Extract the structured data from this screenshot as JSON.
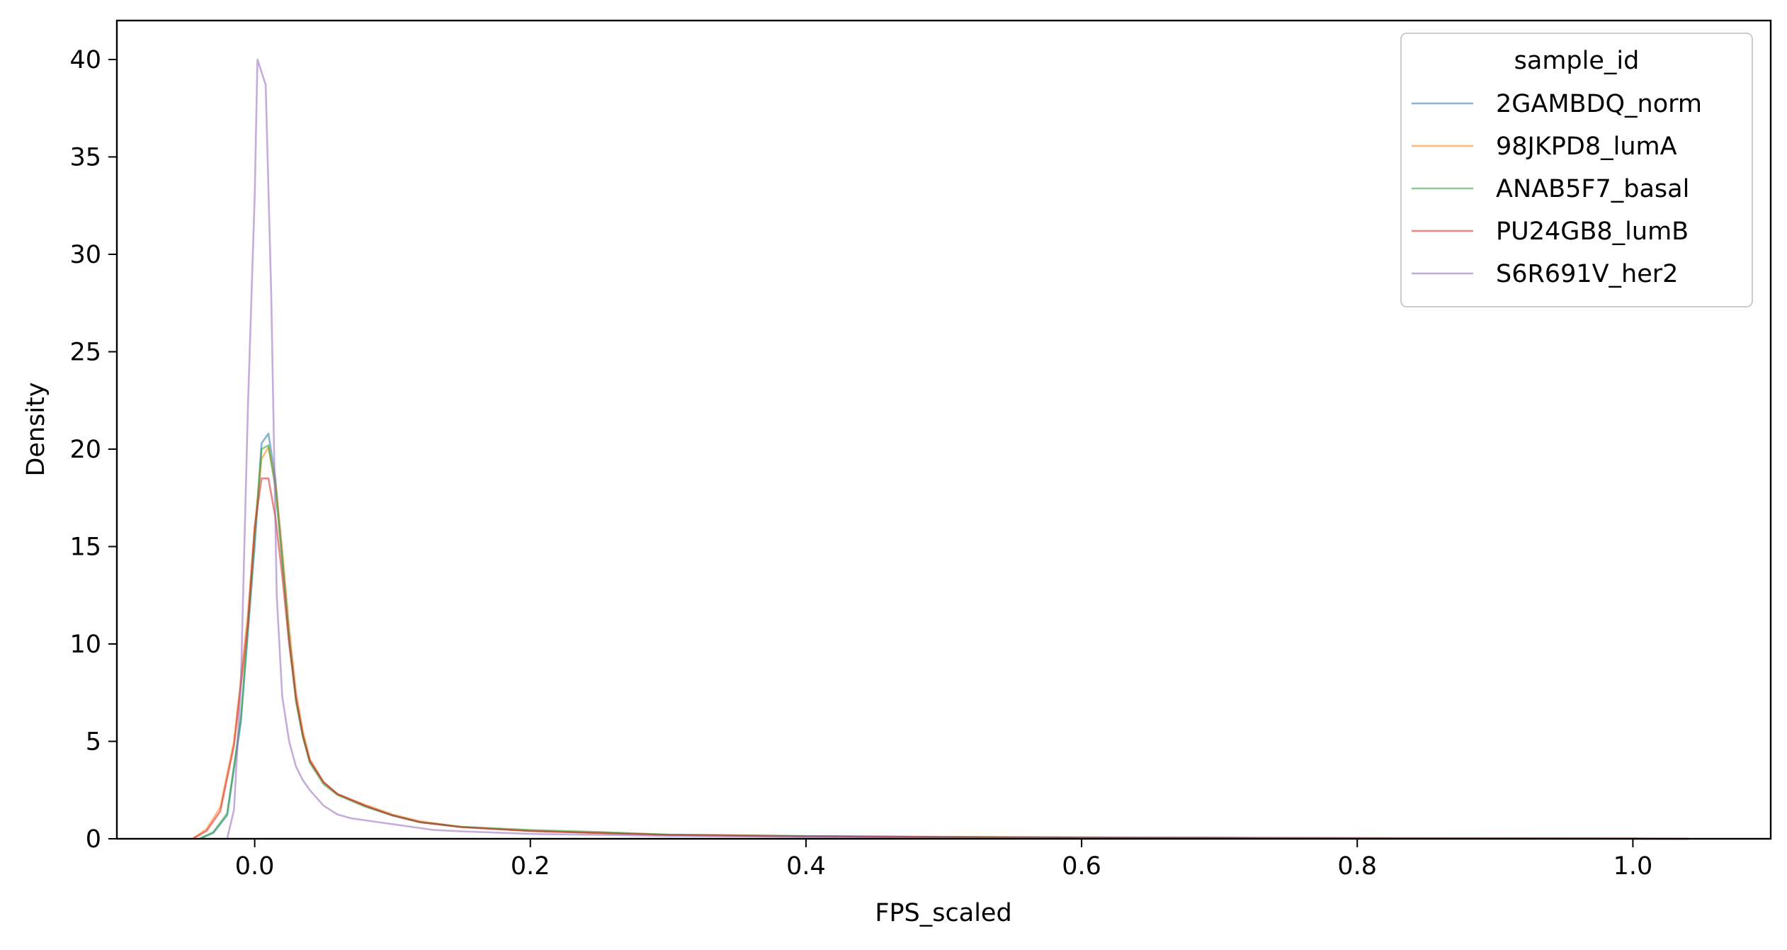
{
  "chart_data": {
    "type": "line",
    "title": "",
    "xlabel": "FPS_scaled",
    "ylabel": "Density",
    "xlim": [
      -0.1,
      1.1
    ],
    "ylim": [
      0,
      42
    ],
    "xticks": [
      0.0,
      0.2,
      0.4,
      0.6,
      0.8,
      1.0
    ],
    "xtick_labels": [
      "0.0",
      "0.2",
      "0.4",
      "0.6",
      "0.8",
      "1.0"
    ],
    "yticks": [
      0,
      5,
      10,
      15,
      20,
      25,
      30,
      35,
      40
    ],
    "ytick_labels": [
      "0",
      "5",
      "10",
      "15",
      "20",
      "25",
      "30",
      "35",
      "40"
    ],
    "grid": false,
    "legend": {
      "title": "sample_id",
      "placement": "top-right"
    },
    "series": [
      {
        "name": "2GAMBDQ_norm",
        "color": "#1f77b4",
        "x": [
          -0.04,
          -0.03,
          -0.02,
          -0.01,
          0.0,
          0.005,
          0.01,
          0.015,
          0.02,
          0.025,
          0.03,
          0.035,
          0.04,
          0.05,
          0.06,
          0.08,
          0.1,
          0.12,
          0.15,
          0.2,
          0.25,
          0.3,
          0.4,
          0.5,
          0.6,
          0.7,
          0.8,
          0.9,
          1.0,
          1.04
        ],
        "y": [
          0.0,
          0.3,
          1.2,
          6.0,
          15.0,
          20.3,
          20.8,
          18.5,
          14.5,
          10.5,
          7.2,
          5.3,
          4.0,
          2.9,
          2.3,
          1.7,
          1.2,
          0.85,
          0.6,
          0.4,
          0.3,
          0.2,
          0.13,
          0.09,
          0.06,
          0.04,
          0.03,
          0.02,
          0.01,
          0.0
        ]
      },
      {
        "name": "98JKPD8_lumA",
        "color": "#ff7f0e",
        "x": [
          -0.045,
          -0.035,
          -0.025,
          -0.015,
          -0.005,
          0.0,
          0.005,
          0.01,
          0.015,
          0.02,
          0.025,
          0.03,
          0.035,
          0.04,
          0.05,
          0.06,
          0.08,
          0.1,
          0.12,
          0.15,
          0.2,
          0.25,
          0.3,
          0.4,
          0.5,
          0.6,
          0.7,
          0.8,
          0.9,
          1.0,
          1.04
        ],
        "y": [
          0.0,
          0.5,
          1.6,
          5.0,
          11.5,
          16.0,
          19.5,
          20.1,
          18.3,
          14.8,
          10.8,
          7.5,
          5.5,
          4.1,
          2.9,
          2.3,
          1.75,
          1.25,
          0.9,
          0.6,
          0.4,
          0.3,
          0.2,
          0.13,
          0.09,
          0.07,
          0.05,
          0.03,
          0.02,
          0.01,
          0.0
        ]
      },
      {
        "name": "ANAB5F7_basal",
        "color": "#2ca02c",
        "x": [
          -0.04,
          -0.03,
          -0.02,
          -0.01,
          0.0,
          0.005,
          0.01,
          0.015,
          0.02,
          0.025,
          0.03,
          0.035,
          0.04,
          0.05,
          0.06,
          0.08,
          0.1,
          0.12,
          0.15,
          0.2,
          0.25,
          0.3,
          0.4,
          0.5,
          0.6,
          0.7,
          0.8,
          0.9,
          1.0,
          1.04
        ],
        "y": [
          0.0,
          0.35,
          1.3,
          6.2,
          15.5,
          20.0,
          20.2,
          18.0,
          14.2,
          10.2,
          7.0,
          5.2,
          3.9,
          2.8,
          2.25,
          1.65,
          1.2,
          0.85,
          0.62,
          0.45,
          0.35,
          0.22,
          0.14,
          0.1,
          0.07,
          0.05,
          0.03,
          0.02,
          0.01,
          0.0
        ]
      },
      {
        "name": "PU24GB8_lumB",
        "color": "#d62728",
        "x": [
          -0.045,
          -0.035,
          -0.025,
          -0.015,
          -0.005,
          0.0,
          0.005,
          0.01,
          0.015,
          0.02,
          0.025,
          0.03,
          0.035,
          0.04,
          0.05,
          0.06,
          0.08,
          0.1,
          0.12,
          0.15,
          0.2,
          0.25,
          0.3,
          0.4,
          0.5,
          0.6,
          0.7,
          0.8,
          0.9,
          1.0,
          1.04
        ],
        "y": [
          0.0,
          0.4,
          1.4,
          4.8,
          11.0,
          16.0,
          18.5,
          18.5,
          16.5,
          13.5,
          10.0,
          7.2,
          5.3,
          4.0,
          2.9,
          2.3,
          1.7,
          1.2,
          0.85,
          0.6,
          0.4,
          0.3,
          0.2,
          0.13,
          0.09,
          0.06,
          0.05,
          0.03,
          0.02,
          0.01,
          0.0
        ]
      },
      {
        "name": "S6R691V_her2",
        "color": "#9467bd",
        "x": [
          -0.02,
          -0.015,
          -0.01,
          -0.005,
          0.0,
          0.002,
          0.008,
          0.012,
          0.016,
          0.02,
          0.025,
          0.03,
          0.035,
          0.04,
          0.05,
          0.06,
          0.07,
          0.08,
          0.1,
          0.13,
          0.15,
          0.2,
          0.3,
          0.4,
          0.5,
          0.6,
          0.7,
          0.8,
          0.9,
          1.0,
          1.04
        ],
        "y": [
          0.0,
          1.5,
          8.0,
          22.0,
          33.0,
          40.0,
          38.7,
          28.0,
          12.5,
          7.3,
          5.0,
          3.7,
          3.0,
          2.5,
          1.7,
          1.25,
          1.05,
          0.95,
          0.75,
          0.45,
          0.38,
          0.25,
          0.15,
          0.1,
          0.07,
          0.05,
          0.03,
          0.02,
          0.01,
          0.005,
          0.0
        ]
      }
    ]
  }
}
